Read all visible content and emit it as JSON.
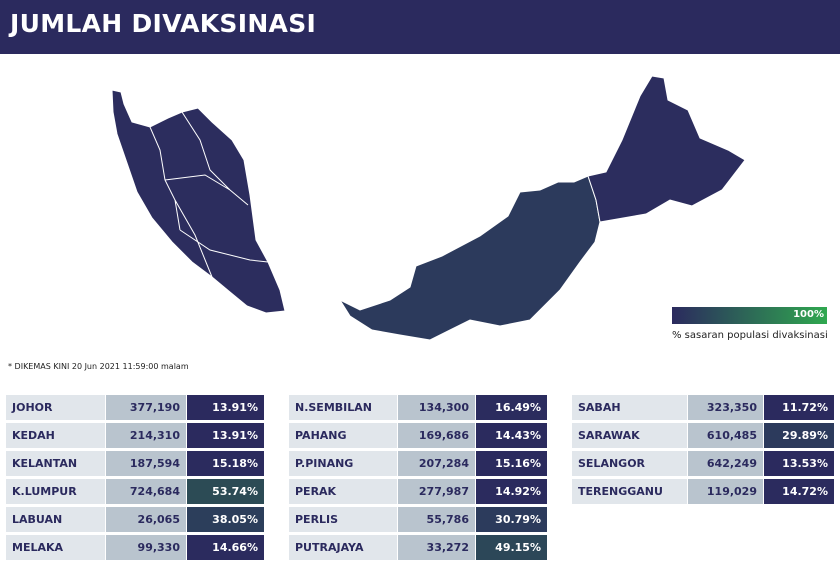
{
  "header": {
    "title": "JUMLAH DIVAKSINASI"
  },
  "map": {
    "legend": {
      "max_label": "100%",
      "caption": "% sasaran populasi divaksinasi"
    }
  },
  "note": "* DIKEMAS KINI 20 Jun 2021 11:59:00 malam",
  "tables": [
    {
      "rows": [
        {
          "name": "JOHOR",
          "count": "377,190",
          "percent": "13.91%",
          "color": "#2b2a5e"
        },
        {
          "name": "KEDAH",
          "count": "214,310",
          "percent": "13.91%",
          "color": "#2b2a5e"
        },
        {
          "name": "KELANTAN",
          "count": "187,594",
          "percent": "15.18%",
          "color": "#2b2b5e"
        },
        {
          "name": "K.LUMPUR",
          "count": "724,684",
          "percent": "53.74%",
          "color": "#2c4b55"
        },
        {
          "name": "LABUAN",
          "count": "26,065",
          "percent": "38.05%",
          "color": "#2c3e5b"
        },
        {
          "name": "MELAKA",
          "count": "99,330",
          "percent": "14.66%",
          "color": "#2b2b5e"
        }
      ]
    },
    {
      "rows": [
        {
          "name": "N.SEMBILAN",
          "count": "134,300",
          "percent": "16.49%",
          "color": "#2b2c5e"
        },
        {
          "name": "PAHANG",
          "count": "169,686",
          "percent": "14.43%",
          "color": "#2b2b5e"
        },
        {
          "name": "P.PINANG",
          "count": "207,284",
          "percent": "15.16%",
          "color": "#2b2b5e"
        },
        {
          "name": "PERAK",
          "count": "277,987",
          "percent": "14.92%",
          "color": "#2b2b5e"
        },
        {
          "name": "PERLIS",
          "count": "55,786",
          "percent": "30.79%",
          "color": "#2c3b5c"
        },
        {
          "name": "PUTRAJAYA",
          "count": "33,272",
          "percent": "49.15%",
          "color": "#2c4758"
        }
      ]
    },
    {
      "rows": [
        {
          "name": "SABAH",
          "count": "323,350",
          "percent": "11.72%",
          "color": "#2b2a5e"
        },
        {
          "name": "SARAWAK",
          "count": "610,485",
          "percent": "29.89%",
          "color": "#2c3a5c"
        },
        {
          "name": "SELANGOR",
          "count": "642,249",
          "percent": "13.53%",
          "color": "#2b2a5e"
        },
        {
          "name": "TERENGGANU",
          "count": "119,029",
          "percent": "14.72%",
          "color": "#2b2b5e"
        }
      ]
    }
  ]
}
